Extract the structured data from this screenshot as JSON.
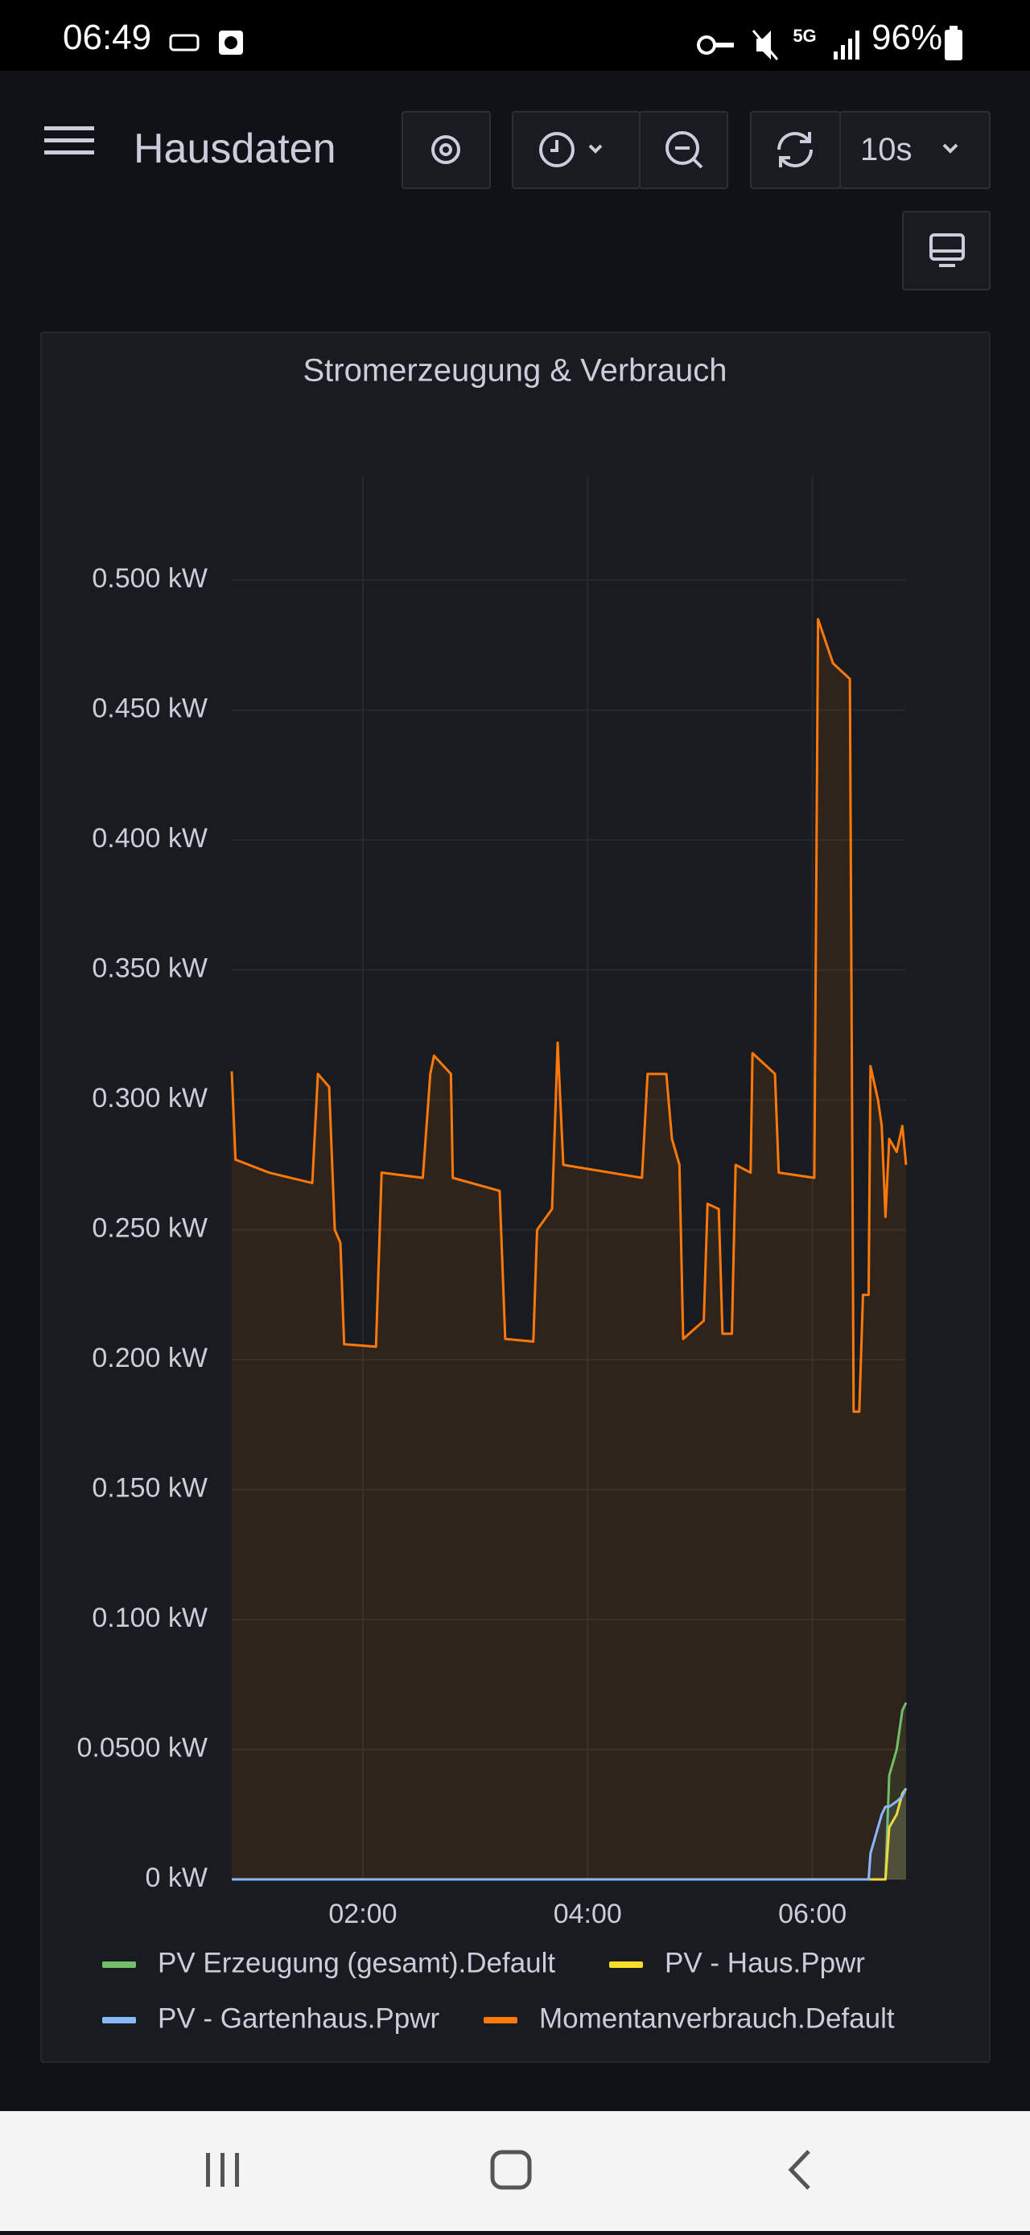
{
  "status_bar": {
    "time": "06:49",
    "network": "5G",
    "battery": "96%"
  },
  "header": {
    "title": "Hausdaten",
    "refresh_interval": "10s"
  },
  "chart_data": {
    "type": "line",
    "title": "Stromerzeugung & Verbrauch",
    "x": [
      "00:50",
      "00:52",
      "01:10",
      "01:33",
      "01:36",
      "01:42",
      "01:45",
      "01:48",
      "01:50",
      "02:07",
      "02:10",
      "02:32",
      "02:36",
      "02:38",
      "02:47",
      "02:48",
      "03:13",
      "03:16",
      "03:31",
      "03:33",
      "03:41",
      "03:44",
      "03:47",
      "04:29",
      "04:32",
      "04:42",
      "04:45",
      "04:49",
      "04:51",
      "05:02",
      "05:04",
      "05:10",
      "05:12",
      "05:17",
      "05:19",
      "05:27",
      "05:28",
      "05:40",
      "05:42",
      "06:01",
      "06:03",
      "06:11",
      "06:20",
      "06:22",
      "06:25",
      "06:27",
      "06:30",
      "06:31",
      "06:35",
      "06:37",
      "06:39",
      "06:41",
      "06:45",
      "06:48",
      "06:50"
    ],
    "xlim": [
      "00:50",
      "06:50"
    ],
    "xticks": [
      "02:00",
      "04:00",
      "06:00"
    ],
    "ylim": [
      0,
      0.54
    ],
    "yticks": [
      {
        "value": 0,
        "label": "0 kW"
      },
      {
        "value": 0.05,
        "label": "0.0500 kW"
      },
      {
        "value": 0.1,
        "label": "0.100 kW"
      },
      {
        "value": 0.15,
        "label": "0.150 kW"
      },
      {
        "value": 0.2,
        "label": "0.200 kW"
      },
      {
        "value": 0.25,
        "label": "0.250 kW"
      },
      {
        "value": 0.3,
        "label": "0.300 kW"
      },
      {
        "value": 0.35,
        "label": "0.350 kW"
      },
      {
        "value": 0.4,
        "label": "0.400 kW"
      },
      {
        "value": 0.45,
        "label": "0.450 kW"
      },
      {
        "value": 0.5,
        "label": "0.500 kW"
      }
    ],
    "grid": true,
    "fill_opacity": 0.1,
    "series": [
      {
        "name": "PV Erzeugung (gesamt).Default",
        "color": "#73bf69",
        "values": [
          0,
          0,
          0,
          0,
          0,
          0,
          0,
          0,
          0,
          0,
          0,
          0,
          0,
          0,
          0,
          0,
          0,
          0,
          0,
          0,
          0,
          0,
          0,
          0,
          0,
          0,
          0,
          0,
          0,
          0,
          0,
          0,
          0,
          0,
          0,
          0,
          0,
          0,
          0,
          0,
          0,
          0,
          0,
          0,
          0,
          0,
          0,
          0,
          0,
          0,
          0,
          0.04,
          0.05,
          0.065,
          0.068
        ]
      },
      {
        "name": "PV - Haus.Ppwr",
        "color": "#fade2a",
        "values": [
          0,
          0,
          0,
          0,
          0,
          0,
          0,
          0,
          0,
          0,
          0,
          0,
          0,
          0,
          0,
          0,
          0,
          0,
          0,
          0,
          0,
          0,
          0,
          0,
          0,
          0,
          0,
          0,
          0,
          0,
          0,
          0,
          0,
          0,
          0,
          0,
          0,
          0,
          0,
          0,
          0,
          0,
          0,
          0,
          0,
          0,
          0,
          0,
          0,
          0,
          0,
          0.02,
          0.025,
          0.033,
          0.035
        ]
      },
      {
        "name": "PV - Gartenhaus.Ppwr",
        "color": "#8ab8ff",
        "values": [
          0,
          0,
          0,
          0,
          0,
          0,
          0,
          0,
          0,
          0,
          0,
          0,
          0,
          0,
          0,
          0,
          0,
          0,
          0,
          0,
          0,
          0,
          0,
          0,
          0,
          0,
          0,
          0,
          0,
          0,
          0,
          0,
          0,
          0,
          0,
          0,
          0,
          0,
          0,
          0,
          0,
          0,
          0,
          0,
          0,
          0,
          0,
          0.01,
          0.02,
          0.025,
          0.028,
          0.028,
          0.03,
          0.032,
          0.035
        ]
      },
      {
        "name": "Momentanverbrauch.Default",
        "color": "#ff780a",
        "values": [
          0.311,
          0.277,
          0.272,
          0.268,
          0.31,
          0.305,
          0.25,
          0.245,
          0.206,
          0.205,
          0.272,
          0.27,
          0.31,
          0.317,
          0.31,
          0.27,
          0.265,
          0.208,
          0.207,
          0.25,
          0.258,
          0.322,
          0.275,
          0.27,
          0.31,
          0.31,
          0.285,
          0.275,
          0.208,
          0.215,
          0.26,
          0.258,
          0.21,
          0.21,
          0.275,
          0.272,
          0.318,
          0.31,
          0.272,
          0.27,
          0.485,
          0.468,
          0.462,
          0.18,
          0.18,
          0.225,
          0.225,
          0.313,
          0.3,
          0.29,
          0.255,
          0.285,
          0.28,
          0.29,
          0.275
        ]
      }
    ]
  }
}
